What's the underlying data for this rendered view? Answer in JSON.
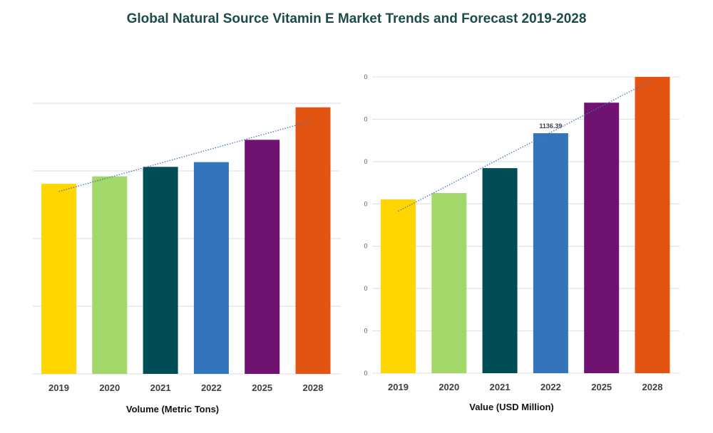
{
  "title": "Global Natural Source Vitamin E Market Trends and Forecast 2019-2028",
  "chart_data": [
    {
      "type": "bar",
      "title": "",
      "xlabel": "Volume (Metric Tons)",
      "ylabel": "",
      "categories": [
        "2019",
        "2020",
        "2021",
        "2022",
        "2025",
        "2028"
      ],
      "values": [
        2.81,
        2.92,
        3.06,
        3.13,
        3.46,
        3.94
      ],
      "values_note": "estimated from bar heights on a relative 0-4 gridline scale; no axis numbers shown",
      "ylim": [
        0,
        4
      ],
      "yticks": [],
      "grid": true,
      "trendline": "linear, dotted",
      "colors": [
        "#FFD600",
        "#A2D769",
        "#004D56",
        "#3474BA",
        "#701370",
        "#E35411"
      ],
      "data_labels": []
    },
    {
      "type": "bar",
      "title": "",
      "xlabel": "Value (USD Million)",
      "ylabel": "",
      "categories": [
        "2019",
        "2020",
        "2021",
        "2022",
        "2025",
        "2028"
      ],
      "values": [
        823,
        853,
        971,
        1136.39,
        1281,
        1403
      ],
      "values_note": "only 1136.39 is printed in the chart; other values are estimated from bar heights",
      "ylim": [
        0,
        1403
      ],
      "yticks": [
        "0",
        "0",
        "0",
        "0",
        "0",
        "0",
        "0",
        "0"
      ],
      "grid": true,
      "trendline": "linear, dotted",
      "colors": [
        "#FFD600",
        "#A2D769",
        "#004D56",
        "#3474BA",
        "#701370",
        "#E35411"
      ],
      "data_labels": [
        {
          "index": 3,
          "text": "1136.39"
        }
      ]
    }
  ]
}
